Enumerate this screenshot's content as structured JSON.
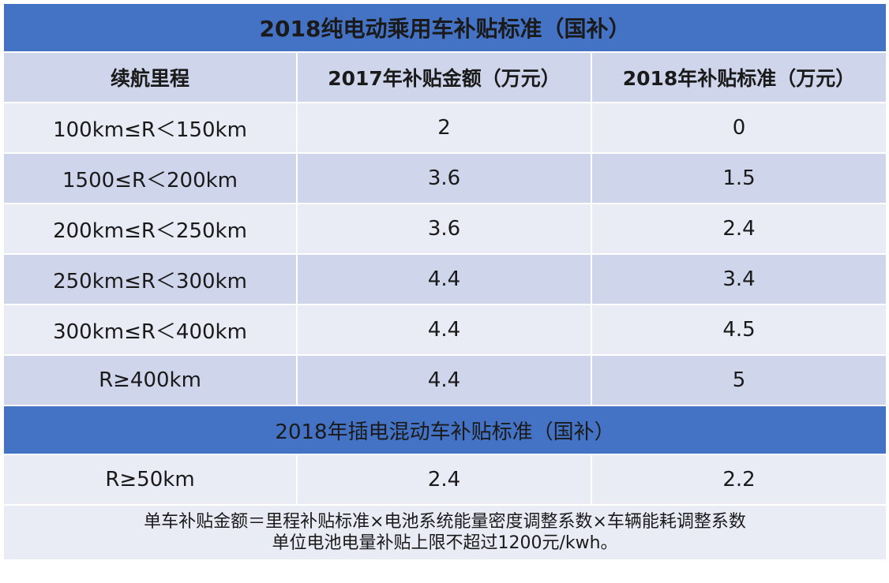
{
  "title": "2018纯电动乘用车补贴标准（国补）",
  "headers": [
    "续航里程",
    "2017年补贴金额（万元）",
    "2018年补贴标准（万元）"
  ],
  "bev_rows": [
    {
      "range": "100km≤R＜150km",
      "y2017": "2",
      "y2018": "0"
    },
    {
      "range": "1500≤R＜200km",
      "y2017": "3.6",
      "y2018": "1.5"
    },
    {
      "range": "200km≤R＜250km",
      "y2017": "3.6",
      "y2018": "2.4"
    },
    {
      "range": "250km≤R＜300km",
      "y2017": "4.4",
      "y2018": "3.4"
    },
    {
      "range": "300km≤R＜400km",
      "y2017": "4.4",
      "y2018": "4.5"
    },
    {
      "range": "R≥400km",
      "y2017": "4.4",
      "y2018": "5"
    }
  ],
  "phev_title": "2018年插电混动车补贴标准（国补）",
  "phev_rows": [
    {
      "range": "R≥50km",
      "y2017": "2.4",
      "y2018": "2.2"
    }
  ],
  "notes": [
    "单车补贴金额＝里程补贴标准×电池系统能量密度调整系数×车辆能耗调整系数",
    "单位电池电量补贴上限不超过1200元/kwh。"
  ],
  "colors": {
    "banner": "#4472c4",
    "header_row": "#cfd5ea",
    "row_dark": "#cfd5ea",
    "row_light": "#e9ebf5"
  }
}
